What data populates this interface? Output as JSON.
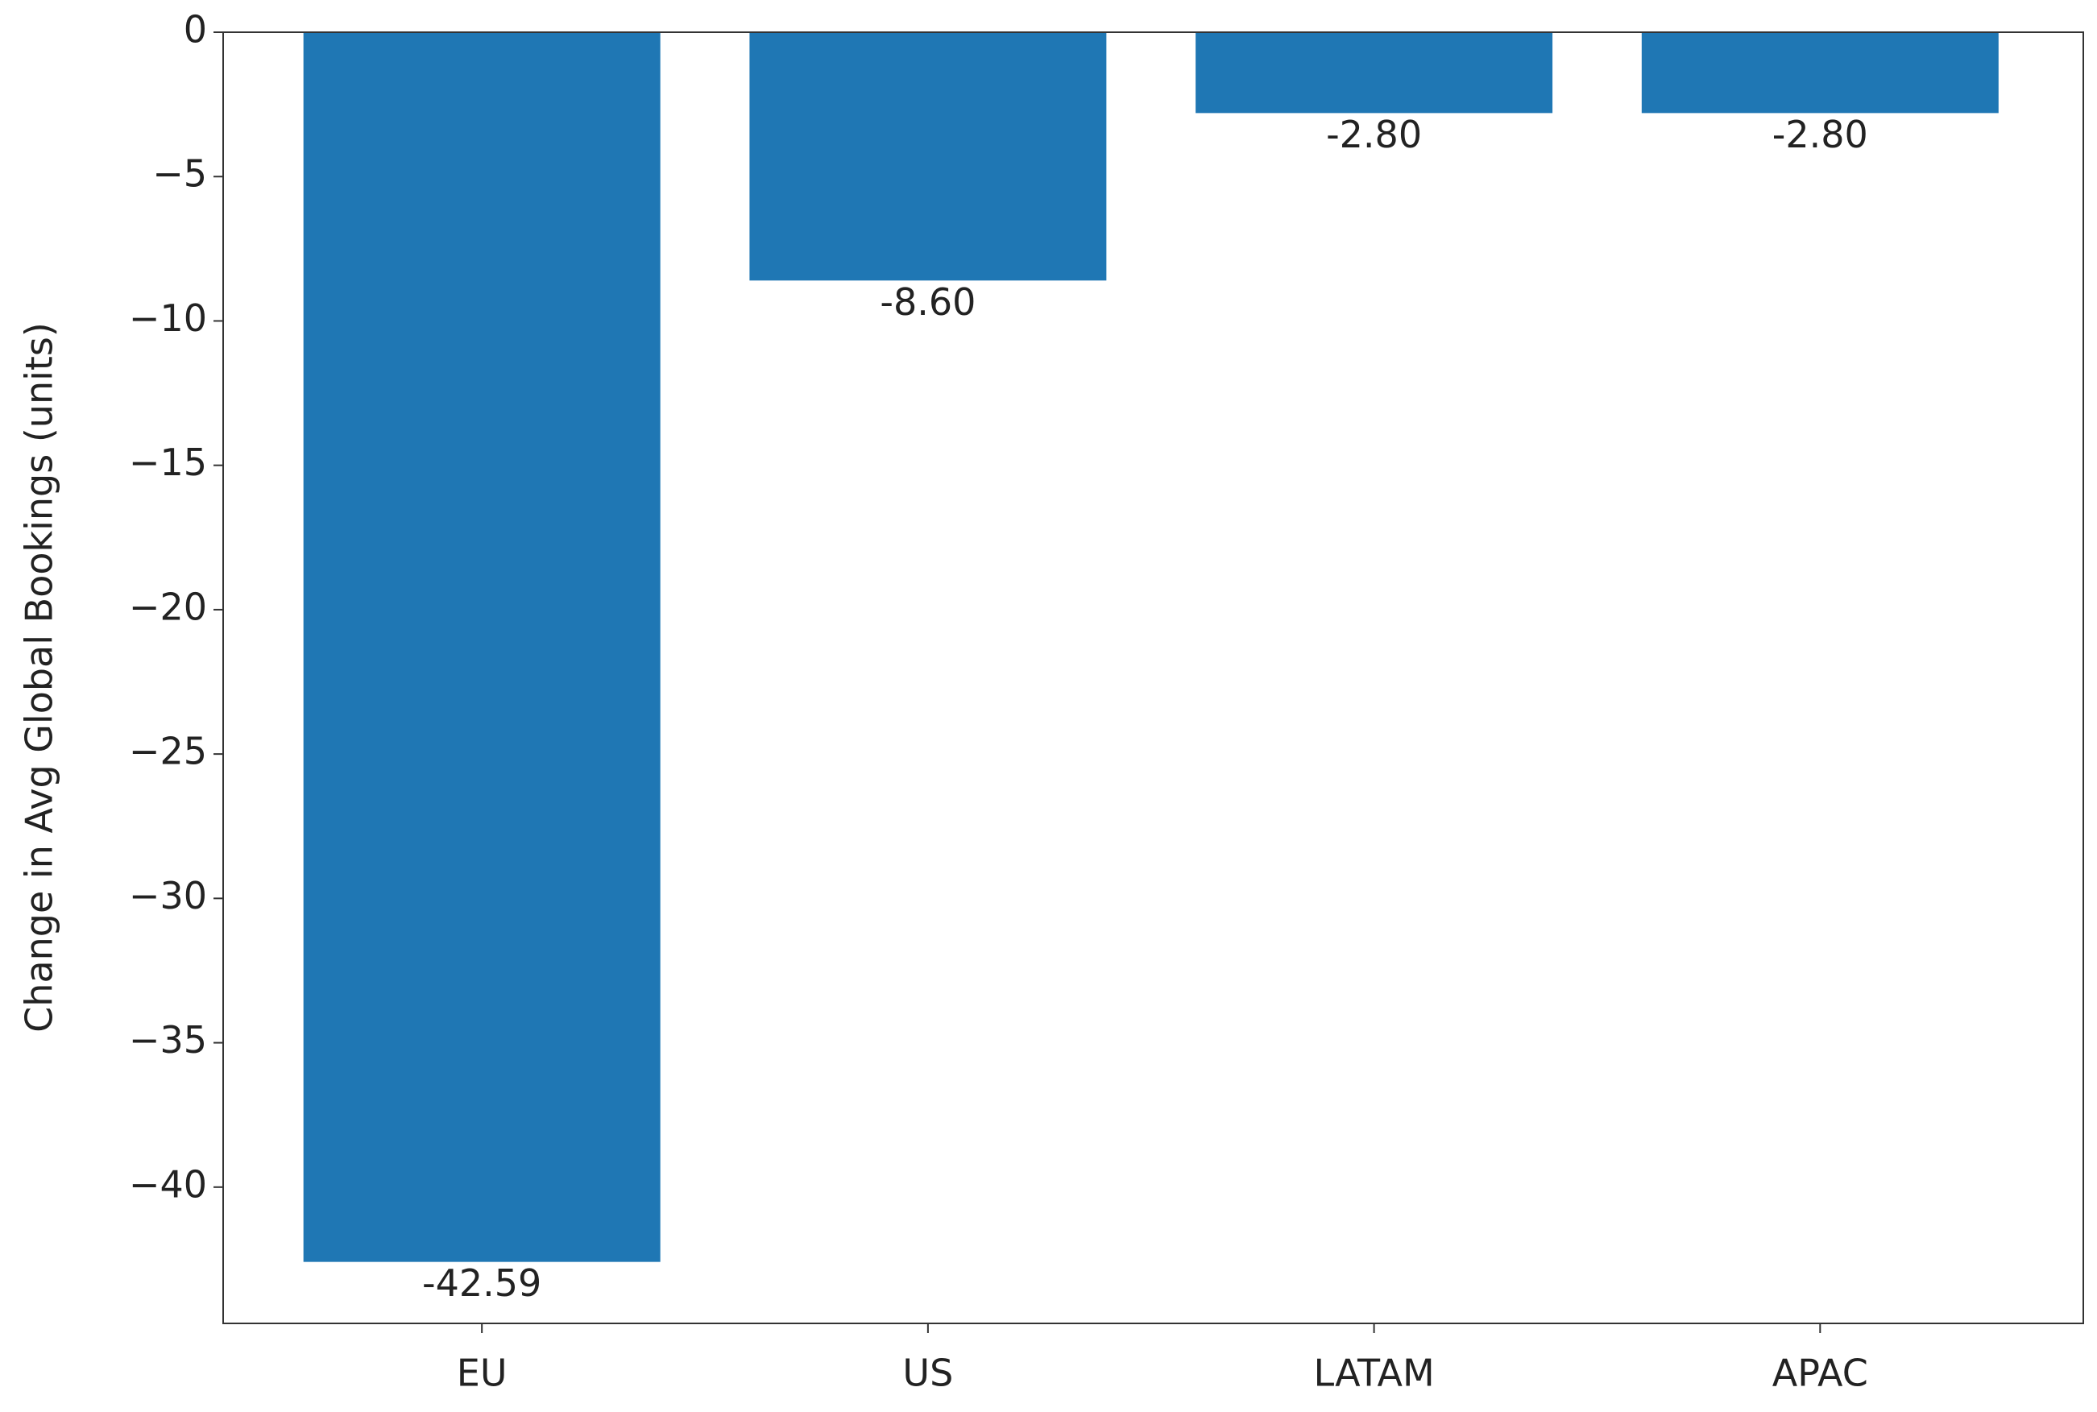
{
  "chart_data": {
    "type": "bar",
    "y_label": "Change in Avg Global Bookings (units)",
    "categories": [
      "EU",
      "US",
      "LATAM",
      "APAC"
    ],
    "values": [
      -42.59,
      -8.6,
      -2.8,
      -2.8
    ],
    "value_labels": [
      "-42.59",
      "-8.60",
      "-2.80",
      "-2.80"
    ],
    "color": "#1f77b4",
    "ylim": [
      -44.72,
      0
    ],
    "yticks": [
      0,
      {
        "value": -5,
        "label": "−5"
      },
      {
        "value": -10,
        "label": "−10"
      },
      {
        "value": -15,
        "label": "−15"
      },
      {
        "value": -20,
        "label": "−20"
      },
      {
        "value": -25,
        "label": "−25"
      },
      {
        "value": -30,
        "label": "−30"
      },
      {
        "value": -35,
        "label": "−35"
      },
      {
        "value": -40,
        "label": "−40"
      }
    ],
    "grid": false
  }
}
